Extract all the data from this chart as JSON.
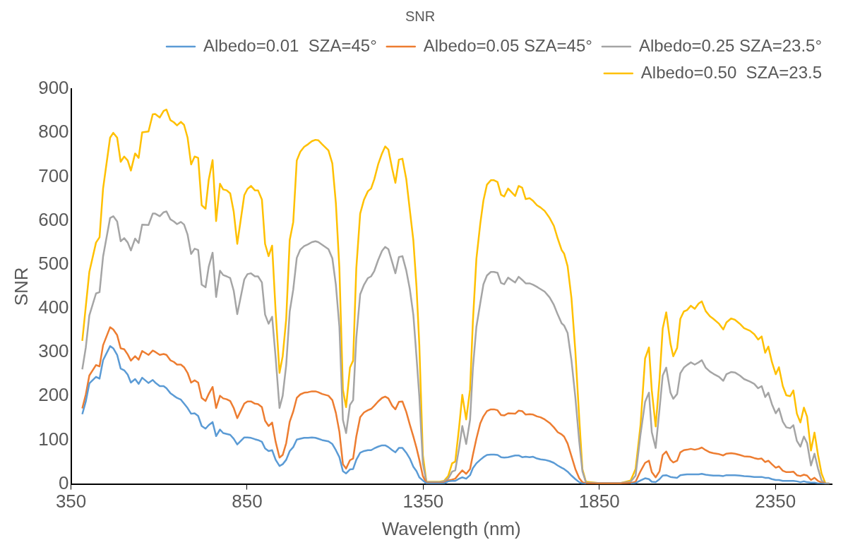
{
  "chart_data": {
    "type": "line",
    "title": "SNR",
    "xlabel": "Wavelength (nm)",
    "ylabel": "SNR",
    "x": [
      382,
      392,
      402,
      421,
      431,
      441,
      461,
      470,
      481,
      491,
      501,
      511,
      520,
      532,
      542,
      552,
      570,
      582,
      589,
      602,
      613,
      621,
      632,
      642,
      651,
      662,
      671,
      681,
      691,
      701,
      711,
      721,
      732,
      741,
      752,
      762,
      773,
      782,
      792,
      802,
      812,
      822,
      842,
      851,
      861,
      872,
      881,
      892,
      901,
      911,
      921,
      931,
      942,
      951,
      961,
      971,
      981,
      991,
      1001,
      1012,
      1023,
      1034,
      1044,
      1052,
      1063,
      1081,
      1092,
      1102,
      1112,
      1122,
      1131,
      1142,
      1151,
      1160,
      1171,
      1182,
      1193,
      1202,
      1211,
      1222,
      1233,
      1242,
      1251,
      1262,
      1271,
      1281,
      1291,
      1302,
      1312,
      1322,
      1331,
      1339,
      1349,
      1359,
      1374,
      1396,
      1409,
      1421,
      1432,
      1441,
      1452,
      1461,
      1472,
      1483,
      1491,
      1501,
      1512,
      1521,
      1531,
      1542,
      1551,
      1561,
      1571,
      1580,
      1591,
      1611,
      1621,
      1631,
      1641,
      1652,
      1662,
      1673,
      1683,
      1695,
      1709,
      1721,
      1732,
      1743,
      1750,
      1760,
      1771,
      1782,
      1793,
      1802,
      1812,
      1846,
      1910,
      1939,
      1953,
      1967,
      1980,
      1991,
      1999,
      2010,
      2021,
      2030,
      2040,
      2052,
      2060,
      2071,
      2080,
      2090,
      2099,
      2110,
      2121,
      2132,
      2141,
      2152,
      2164,
      2174,
      2190,
      2202,
      2211,
      2224,
      2235,
      2249,
      2261,
      2278,
      2290,
      2301,
      2311,
      2321,
      2330,
      2340,
      2351,
      2360,
      2371,
      2381,
      2392,
      2401,
      2411,
      2421,
      2431,
      2440,
      2451,
      2461,
      2471,
      2481,
      2492,
      2503
    ],
    "series": [
      {
        "name": "Albedo=0.01  SZA=45°",
        "color": "#5b9bd5",
        "values": [
          159,
          188,
          229,
          244,
          240,
          282,
          314,
          309,
          294,
          263,
          259,
          249,
          231,
          239,
          228,
          242,
          230,
          237,
          231,
          223,
          223,
          218,
          207,
          201,
          196,
          192,
          183,
          173,
          160,
          161,
          155,
          132,
          126,
          134,
          141,
          109,
          124,
          116,
          114,
          112,
          103,
          90,
          106,
          106,
          105,
          102,
          100,
          96,
          81,
          75,
          77,
          55,
          41,
          45,
          55,
          75,
          84,
          101,
          103,
          105,
          105,
          106,
          105,
          103,
          100,
          97,
          91,
          77,
          61,
          29,
          24,
          33,
          34,
          55,
          71,
          75,
          77,
          77,
          81,
          85,
          88,
          88,
          84,
          77,
          72,
          82,
          82,
          71,
          58,
          39,
          29,
          15,
          8,
          1,
          1,
          1,
          1,
          6,
          7,
          7,
          12,
          15,
          12,
          20,
          36,
          47,
          55,
          61,
          66,
          67,
          67,
          66,
          61,
          60,
          61,
          65,
          65,
          61,
          62,
          61,
          62,
          58,
          56,
          55,
          52,
          48,
          42,
          37,
          34,
          28,
          19,
          11,
          4,
          1,
          0,
          null,
          null,
          0,
          2,
          8,
          13,
          11,
          5,
          4,
          11,
          19,
          20,
          16,
          15,
          14,
          20,
          21,
          22,
          22,
          22,
          22,
          23,
          21,
          20,
          19,
          19,
          18,
          20,
          20,
          20,
          19,
          18,
          17,
          16,
          16,
          16,
          14,
          14,
          11,
          9,
          9,
          7,
          7,
          7,
          7,
          6,
          4,
          6,
          4,
          3,
          3,
          1,
          1,
          0,
          0
        ]
      },
      {
        "name": "Albedo=0.05 SZA=45°",
        "color": "#ed7d31",
        "values": [
          172,
          204,
          247,
          271,
          268,
          316,
          357,
          352,
          339,
          309,
          307,
          295,
          281,
          291,
          283,
          303,
          294,
          304,
          301,
          294,
          296,
          294,
          282,
          278,
          272,
          272,
          266,
          253,
          231,
          236,
          231,
          196,
          189,
          205,
          221,
          173,
          201,
          195,
          193,
          189,
          173,
          150,
          183,
          188,
          188,
          183,
          182,
          175,
          144,
          132,
          140,
          96,
          60,
          66,
          93,
          142,
          165,
          196,
          204,
          208,
          209,
          211,
          211,
          209,
          205,
          201,
          191,
          162,
          119,
          45,
          35,
          54,
          58,
          108,
          152,
          163,
          168,
          171,
          178,
          188,
          196,
          199,
          195,
          178,
          170,
          187,
          188,
          164,
          135,
          108,
          82,
          55,
          18,
          2,
          2,
          2,
          3,
          8,
          10,
          12,
          23,
          31,
          23,
          34,
          66,
          103,
          138,
          154,
          166,
          170,
          170,
          168,
          157,
          156,
          161,
          160,
          167,
          166,
          158,
          159,
          158,
          154,
          152,
          147,
          139,
          129,
          118,
          113,
          108,
          92,
          63,
          34,
          13,
          4,
          1,
          1,
          1,
          2,
          5,
          29,
          48,
          53,
          27,
          15,
          29,
          66,
          74,
          55,
          49,
          53,
          72,
          77,
          78,
          80,
          78,
          80,
          83,
          77,
          72,
          70,
          68,
          65,
          69,
          70,
          69,
          66,
          63,
          62,
          59,
          57,
          58,
          50,
          53,
          45,
          37,
          40,
          30,
          27,
          27,
          28,
          20,
          18,
          21,
          19,
          9,
          14,
          7,
          3,
          1,
          0
        ]
      },
      {
        "name": "Albedo=0.25 SZA=23.5°",
        "color": "#a5a5a5",
        "values": [
          261,
          311,
          384,
          434,
          437,
          518,
          606,
          610,
          598,
          553,
          560,
          550,
          532,
          559,
          549,
          591,
          590,
          616,
          616,
          610,
          619,
          621,
          603,
          598,
          592,
          597,
          591,
          568,
          524,
          536,
          533,
          454,
          448,
          495,
          527,
          426,
          486,
          476,
          473,
          469,
          440,
          387,
          466,
          478,
          480,
          473,
          473,
          459,
          386,
          365,
          381,
          288,
          173,
          201,
          271,
          393,
          443,
          515,
          534,
          542,
          546,
          551,
          553,
          551,
          545,
          535,
          514,
          454,
          358,
          146,
          116,
          180,
          191,
          332,
          432,
          454,
          469,
          473,
          485,
          510,
          531,
          540,
          535,
          505,
          480,
          517,
          519,
          486,
          444,
          385,
          289,
          199,
          47,
          4,
          4,
          4,
          6,
          12,
          28,
          31,
          82,
          132,
          91,
          146,
          263,
          358,
          412,
          455,
          475,
          483,
          483,
          481,
          458,
          455,
          470,
          459,
          472,
          465,
          457,
          457,
          454,
          449,
          444,
          438,
          425,
          408,
          386,
          366,
          361,
          344,
          281,
          197,
          97,
          29,
          3,
          2,
          2,
          5,
          19,
          113,
          187,
          208,
          118,
          82,
          171,
          247,
          265,
          208,
          194,
          205,
          252,
          265,
          271,
          277,
          272,
          277,
          282,
          265,
          256,
          251,
          244,
          235,
          250,
          255,
          254,
          247,
          239,
          233,
          228,
          218,
          223,
          198,
          208,
          182,
          161,
          172,
          142,
          129,
          127,
          134,
          98,
          85,
          108,
          93,
          42,
          69,
          35,
          8,
          1,
          1
        ]
      },
      {
        "name": "Albedo=0.50  SZA=23.5",
        "color": "#ffc000",
        "values": [
          326,
          405,
          483,
          550,
          562,
          673,
          789,
          800,
          789,
          734,
          746,
          737,
          714,
          753,
          743,
          801,
          803,
          842,
          843,
          835,
          850,
          853,
          829,
          824,
          817,
          825,
          818,
          789,
          728,
          746,
          743,
          635,
          627,
          693,
          738,
          599,
          684,
          671,
          669,
          662,
          620,
          547,
          658,
          672,
          679,
          669,
          669,
          648,
          547,
          519,
          543,
          393,
          253,
          291,
          376,
          556,
          597,
          737,
          757,
          768,
          774,
          781,
          784,
          783,
          774,
          760,
          730,
          640,
          491,
          215,
          175,
          265,
          281,
          491,
          616,
          648,
          667,
          673,
          694,
          728,
          753,
          769,
          762,
          718,
          686,
          739,
          741,
          694,
          624,
          555,
          449,
          316,
          66,
          5,
          5,
          5,
          7,
          18,
          47,
          51,
          130,
          203,
          147,
          215,
          369,
          513,
          593,
          646,
          682,
          692,
          692,
          688,
          659,
          655,
          673,
          656,
          679,
          675,
          649,
          651,
          645,
          635,
          630,
          622,
          606,
          588,
          559,
          533,
          525,
          496,
          423,
          302,
          150,
          34,
          5,
          2,
          2,
          8,
          34,
          134,
          286,
          311,
          213,
          131,
          239,
          354,
          391,
          320,
          291,
          310,
          376,
          393,
          396,
          406,
          399,
          411,
          416,
          394,
          382,
          376,
          365,
          352,
          368,
          377,
          374,
          365,
          355,
          349,
          341,
          329,
          336,
          299,
          313,
          278,
          250,
          266,
          223,
          202,
          200,
          213,
          160,
          140,
          174,
          153,
          76,
          117,
          66,
          24,
          1,
          1
        ]
      }
    ],
    "xlim": [
      350,
      2510
    ],
    "xticks": [
      350,
      850,
      1350,
      1850,
      2350
    ],
    "ylim": [
      0,
      900
    ],
    "yticks": [
      0,
      100,
      200,
      300,
      400,
      500,
      600,
      700,
      800,
      900
    ],
    "grid": false,
    "legend": "top right",
    "marker": "none",
    "line_style": "solid"
  }
}
